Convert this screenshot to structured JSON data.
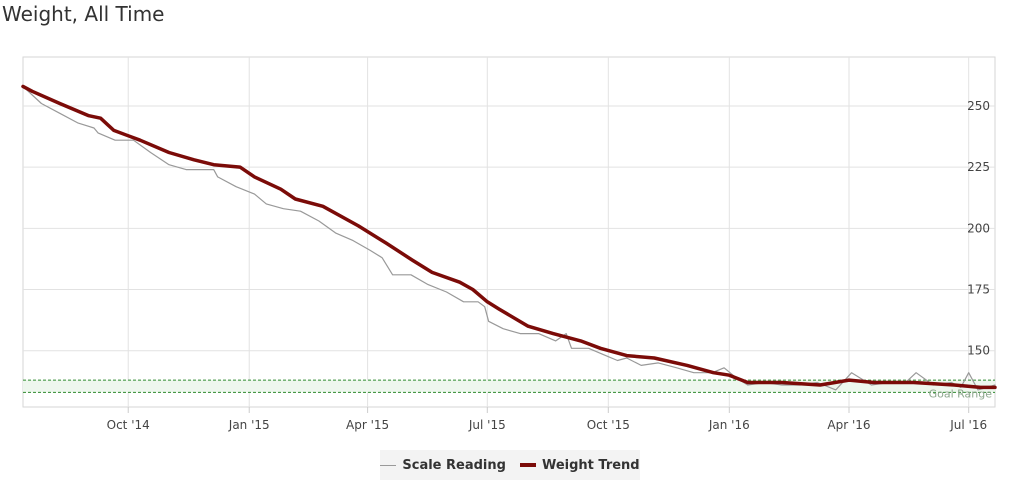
{
  "title": "Weight, All Time",
  "colors": {
    "scale": "#999999",
    "trend": "#7b0b08",
    "goal": "#2e8b2e",
    "goal_fill": "#eef7ee",
    "grid": "#e2e2e2"
  },
  "chart_data": {
    "type": "line",
    "title": "Weight, All Time",
    "xlabel": "",
    "ylabel": "",
    "x_range": [
      "2014-07-13",
      "2016-07-21"
    ],
    "ylim": [
      127,
      270
    ],
    "y_ticks": [
      150,
      175,
      200,
      225,
      250
    ],
    "x_ticks": [
      {
        "date": "2014-10-01",
        "label": "Oct '14"
      },
      {
        "date": "2015-01-01",
        "label": "Jan '15"
      },
      {
        "date": "2015-04-01",
        "label": "Apr '15"
      },
      {
        "date": "2015-07-01",
        "label": "Jul '15"
      },
      {
        "date": "2015-10-01",
        "label": "Oct '15"
      },
      {
        "date": "2016-01-01",
        "label": "Jan '16"
      },
      {
        "date": "2016-04-01",
        "label": "Apr '16"
      },
      {
        "date": "2016-07-01",
        "label": "Jul '16"
      }
    ],
    "grid": true,
    "legend_position": "bottom-center",
    "goal_range": {
      "label": "Goal Range",
      "low": 133,
      "high": 138
    },
    "series": [
      {
        "name": "Scale Reading",
        "points": [
          [
            "2014-07-13",
            258
          ],
          [
            "2014-07-27",
            251
          ],
          [
            "2014-08-10",
            247
          ],
          [
            "2014-08-24",
            243
          ],
          [
            "2014-09-05",
            241
          ],
          [
            "2014-09-08",
            239
          ],
          [
            "2014-09-21",
            236
          ],
          [
            "2014-10-05",
            236
          ],
          [
            "2014-10-18",
            231
          ],
          [
            "2014-11-01",
            226
          ],
          [
            "2014-11-14",
            224
          ],
          [
            "2014-11-27",
            224
          ],
          [
            "2014-12-05",
            224
          ],
          [
            "2014-12-08",
            221
          ],
          [
            "2014-12-22",
            217
          ],
          [
            "2015-01-05",
            214
          ],
          [
            "2015-01-14",
            210
          ],
          [
            "2015-01-27",
            208
          ],
          [
            "2015-02-09",
            207
          ],
          [
            "2015-02-23",
            203
          ],
          [
            "2015-03-08",
            198
          ],
          [
            "2015-03-21",
            195
          ],
          [
            "2015-04-03",
            191
          ],
          [
            "2015-04-12",
            188
          ],
          [
            "2015-04-20",
            181
          ],
          [
            "2015-05-04",
            181
          ],
          [
            "2015-05-17",
            177
          ],
          [
            "2015-05-31",
            174
          ],
          [
            "2015-06-13",
            170
          ],
          [
            "2015-06-24",
            170
          ],
          [
            "2015-06-29",
            168
          ],
          [
            "2015-07-02",
            162
          ],
          [
            "2015-07-13",
            159
          ],
          [
            "2015-07-26",
            157
          ],
          [
            "2015-08-09",
            157
          ],
          [
            "2015-08-22",
            154
          ],
          [
            "2015-08-30",
            157
          ],
          [
            "2015-09-03",
            151
          ],
          [
            "2015-09-16",
            151
          ],
          [
            "2015-09-29",
            148
          ],
          [
            "2015-10-08",
            146
          ],
          [
            "2015-10-15",
            147
          ],
          [
            "2015-10-26",
            144
          ],
          [
            "2015-11-08",
            145
          ],
          [
            "2015-11-22",
            143
          ],
          [
            "2015-12-05",
            141
          ],
          [
            "2015-12-19",
            141
          ],
          [
            "2015-12-28",
            143
          ],
          [
            "2016-01-06",
            139
          ],
          [
            "2016-01-15",
            136
          ],
          [
            "2016-01-28",
            137
          ],
          [
            "2016-02-10",
            136
          ],
          [
            "2016-02-24",
            136
          ],
          [
            "2016-03-08",
            137
          ],
          [
            "2016-03-22",
            134
          ],
          [
            "2016-04-03",
            141
          ],
          [
            "2016-04-18",
            136
          ],
          [
            "2016-05-01",
            137
          ],
          [
            "2016-05-14",
            137
          ],
          [
            "2016-05-22",
            141
          ],
          [
            "2016-06-04",
            136
          ],
          [
            "2016-06-18",
            137
          ],
          [
            "2016-06-25",
            135
          ],
          [
            "2016-07-01",
            141
          ],
          [
            "2016-07-08",
            134
          ],
          [
            "2016-07-15",
            135
          ],
          [
            "2016-07-21",
            136
          ]
        ]
      },
      {
        "name": "Weight Trend",
        "points": [
          [
            "2014-07-13",
            258
          ],
          [
            "2014-07-20",
            256
          ],
          [
            "2014-08-10",
            251
          ],
          [
            "2014-09-01",
            246
          ],
          [
            "2014-09-10",
            245
          ],
          [
            "2014-09-20",
            240
          ],
          [
            "2014-10-10",
            236
          ],
          [
            "2014-11-01",
            231
          ],
          [
            "2014-11-20",
            228
          ],
          [
            "2014-12-05",
            226
          ],
          [
            "2014-12-25",
            225
          ],
          [
            "2015-01-05",
            221
          ],
          [
            "2015-01-25",
            216
          ],
          [
            "2015-02-05",
            212
          ],
          [
            "2015-02-26",
            209
          ],
          [
            "2015-03-25",
            201
          ],
          [
            "2015-04-15",
            194
          ],
          [
            "2015-05-05",
            187
          ],
          [
            "2015-05-20",
            182
          ],
          [
            "2015-06-10",
            178
          ],
          [
            "2015-06-20",
            175
          ],
          [
            "2015-07-01",
            170
          ],
          [
            "2015-07-10",
            167
          ],
          [
            "2015-08-01",
            160
          ],
          [
            "2015-08-20",
            157
          ],
          [
            "2015-09-10",
            154
          ],
          [
            "2015-09-25",
            151
          ],
          [
            "2015-10-15",
            148
          ],
          [
            "2015-11-05",
            147
          ],
          [
            "2015-11-30",
            144
          ],
          [
            "2015-12-20",
            141
          ],
          [
            "2016-01-01",
            140
          ],
          [
            "2016-01-15",
            137
          ],
          [
            "2016-02-10",
            137
          ],
          [
            "2016-03-10",
            136
          ],
          [
            "2016-04-01",
            138
          ],
          [
            "2016-04-20",
            137
          ],
          [
            "2016-05-20",
            137
          ],
          [
            "2016-06-20",
            136
          ],
          [
            "2016-07-10",
            135
          ],
          [
            "2016-07-21",
            135
          ]
        ]
      }
    ]
  }
}
